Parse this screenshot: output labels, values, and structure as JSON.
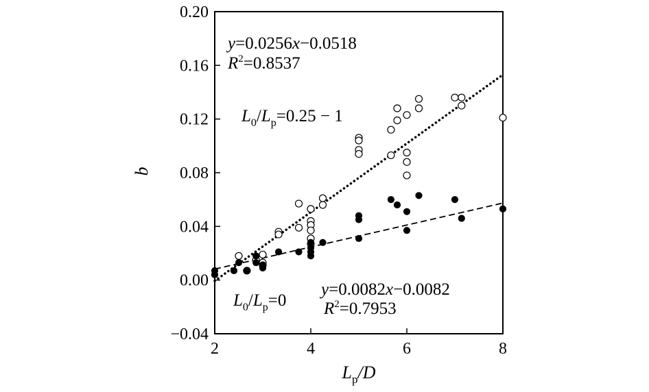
{
  "chart_data": {
    "type": "scatter",
    "xlabel": "Lp/D",
    "ylabel": "b",
    "xlim": [
      2,
      8
    ],
    "ylim": [
      -0.04,
      0.2
    ],
    "xticks": [
      "2",
      "4",
      "6",
      "8"
    ],
    "yticks": [
      "−0.04",
      "0.00",
      "0.04",
      "0.08",
      "0.12",
      "0.16",
      "0.20"
    ],
    "grid": false,
    "series": [
      {
        "name": "L0/Lp=0.25−1",
        "marker": "open-circle",
        "points": [
          [
            2.5,
            0.018
          ],
          [
            2.67,
            0.007
          ],
          [
            2.86,
            0.015
          ],
          [
            3.0,
            0.019
          ],
          [
            3.0,
            0.013
          ],
          [
            3.0,
            0.011
          ],
          [
            3.33,
            0.036
          ],
          [
            3.33,
            0.034
          ],
          [
            3.75,
            0.057
          ],
          [
            3.75,
            0.039
          ],
          [
            4.0,
            0.053
          ],
          [
            4.0,
            0.044
          ],
          [
            4.0,
            0.041
          ],
          [
            4.0,
            0.037
          ],
          [
            4.0,
            0.031
          ],
          [
            4.0,
            0.027
          ],
          [
            4.25,
            0.061
          ],
          [
            4.25,
            0.056
          ],
          [
            5.0,
            0.106
          ],
          [
            5.0,
            0.104
          ],
          [
            5.0,
            0.097
          ],
          [
            5.0,
            0.094
          ],
          [
            5.67,
            0.112
          ],
          [
            5.67,
            0.093
          ],
          [
            5.8,
            0.128
          ],
          [
            5.8,
            0.119
          ],
          [
            6.0,
            0.123
          ],
          [
            6.0,
            0.095
          ],
          [
            6.0,
            0.088
          ],
          [
            6.0,
            0.078
          ],
          [
            6.25,
            0.135
          ],
          [
            6.25,
            0.128
          ],
          [
            7.0,
            0.136
          ],
          [
            7.14,
            0.136
          ],
          [
            7.14,
            0.13
          ],
          [
            8.0,
            0.121
          ]
        ],
        "fit": {
          "slope": 0.0256,
          "intercept": -0.0518,
          "style": "dotted"
        }
      },
      {
        "name": "L0/Lp=0",
        "marker": "filled-circle",
        "points": [
          [
            2.0,
            0.007
          ],
          [
            2.0,
            0.004
          ],
          [
            2.4,
            0.007
          ],
          [
            2.5,
            0.013
          ],
          [
            2.67,
            0.007
          ],
          [
            2.86,
            0.013
          ],
          [
            2.86,
            0.018
          ],
          [
            3.0,
            0.011
          ],
          [
            3.0,
            0.009
          ],
          [
            3.33,
            0.021
          ],
          [
            3.75,
            0.021
          ],
          [
            4.0,
            0.028
          ],
          [
            4.0,
            0.024
          ],
          [
            4.0,
            0.021
          ],
          [
            4.0,
            0.018
          ],
          [
            4.25,
            0.028
          ],
          [
            5.0,
            0.048
          ],
          [
            5.0,
            0.045
          ],
          [
            5.0,
            0.031
          ],
          [
            5.67,
            0.06
          ],
          [
            5.8,
            0.056
          ],
          [
            6.0,
            0.051
          ],
          [
            6.0,
            0.037
          ],
          [
            6.25,
            0.063
          ],
          [
            7.0,
            0.06
          ],
          [
            7.14,
            0.046
          ],
          [
            8.0,
            0.053
          ]
        ],
        "fit": {
          "slope": 0.0082,
          "intercept": -0.0082,
          "style": "dashed"
        }
      }
    ],
    "annotations": {
      "top_equation": "y=0.0256x−0.0518",
      "top_r2": "R²=0.8537",
      "top_group": "L0/Lp=0.25−1",
      "bottom_group": "L0/Lp=0",
      "bottom_equation": "y=0.0082x−0.0082",
      "bottom_r2": "R²=0.7953"
    }
  },
  "text": {
    "xlabel_main": "L",
    "xlabel_sub": "p",
    "xlabel_rest": "/D",
    "ylabel": "b",
    "top_eq_y": "y",
    "top_eq_rest1": "=0.0256",
    "top_eq_x": "x",
    "top_eq_rest2": "−0.0518",
    "top_r2_r": "R",
    "top_r2_sup": "2",
    "top_r2_rest": "=0.8537",
    "grp1_L": "L",
    "grp1_sub0": "0",
    "grp1_slash": "/",
    "grp1_L2": "L",
    "grp1_subp": "p",
    "grp1_rest": "=0.25 − 1",
    "grp2_L": "L",
    "grp2_sub0": "0",
    "grp2_slash": "/",
    "grp2_L2": "L",
    "grp2_subp": "p",
    "grp2_rest": "=0",
    "bot_eq_y": "y",
    "bot_eq_rest1": "=0.0082",
    "bot_eq_x": "x",
    "bot_eq_rest2": "−0.0082",
    "bot_r2_r": "R",
    "bot_r2_sup": "2",
    "bot_r2_rest": "=0.7953"
  }
}
